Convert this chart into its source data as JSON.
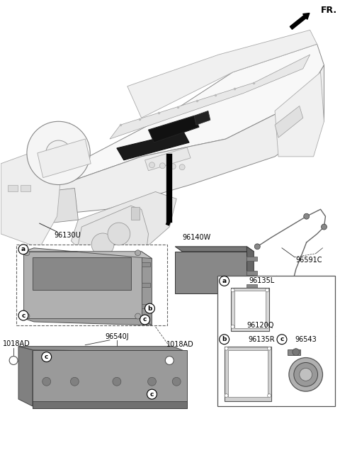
{
  "bg_color": "#ffffff",
  "figsize": [
    4.8,
    6.56
  ],
  "dpi": 100,
  "labels": {
    "FR": "FR.",
    "96130U": "96130U",
    "96140W": "96140W",
    "96591C": "96591C",
    "96540J": "96540J",
    "1018AD_l": "1018AD",
    "1018AD_r": "1018AD",
    "96120Q": "96120Q",
    "96135L": "96135L",
    "96135R": "96135R",
    "96543": "96543"
  }
}
